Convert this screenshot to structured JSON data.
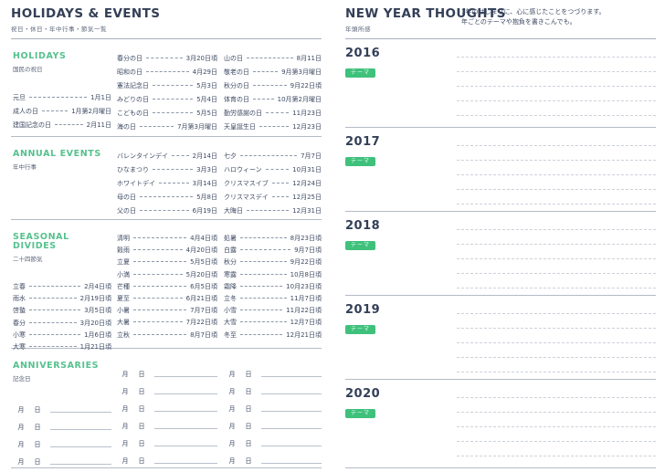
{
  "colors": {
    "navy": "#333f57",
    "section_green": "#56c18e",
    "badge_green": "#3fc17c",
    "rule_gray": "#b4bbc7",
    "dashed_gray": "#cdd2da"
  },
  "left_page": {
    "title": "HOLIDAYS & EVENTS",
    "subtitle": "祝日・休日・年中行事・節気一覧",
    "sections": [
      {
        "title": "HOLIDAYS",
        "subtitle": "国民の祝日",
        "columns": [
          [
            {
              "name": "元旦",
              "date": "1月1日"
            },
            {
              "name": "成人の日",
              "date": "1月第2月曜日"
            },
            {
              "name": "建国記念の日",
              "date": "2月11日"
            }
          ],
          [
            {
              "name": "春分の日",
              "date": "3月20日頃"
            },
            {
              "name": "昭和の日",
              "date": "4月29日"
            },
            {
              "name": "憲法記念日",
              "date": "5月3日"
            },
            {
              "name": "みどりの日",
              "date": "5月4日"
            },
            {
              "name": "こどもの日",
              "date": "5月5日"
            },
            {
              "name": "海の日",
              "date": "7月第3月曜日"
            }
          ],
          [
            {
              "name": "山の日",
              "date": "8月11日"
            },
            {
              "name": "敬老の日",
              "date": "9月第3月曜日"
            },
            {
              "name": "秋分の日",
              "date": "9月22日頃"
            },
            {
              "name": "体育の日",
              "date": "10月第2月曜日"
            },
            {
              "name": "勤労感謝の日",
              "date": "11月23日"
            },
            {
              "name": "天皇誕生日",
              "date": "12月23日"
            }
          ]
        ]
      },
      {
        "title": "ANNUAL EVENTS",
        "subtitle": "年中行事",
        "columns": [
          [],
          [
            {
              "name": "バレンタインデイ",
              "date": "2月14日"
            },
            {
              "name": "ひなまつり",
              "date": "3月3日"
            },
            {
              "name": "ホワイトデイ",
              "date": "3月14日"
            },
            {
              "name": "母の日",
              "date": "5月8日"
            },
            {
              "name": "父の日",
              "date": "6月19日"
            }
          ],
          [
            {
              "name": "七夕",
              "date": "7月7日"
            },
            {
              "name": "ハロウィーン",
              "date": "10月31日"
            },
            {
              "name": "クリスマスイブ",
              "date": "12月24日"
            },
            {
              "name": "クリスマスデイ",
              "date": "12月25日"
            },
            {
              "name": "大晦日",
              "date": "12月31日"
            }
          ]
        ]
      },
      {
        "title": "SEASONAL DIVIDES",
        "subtitle": "二十四節気",
        "columns": [
          [
            {
              "name": "立春",
              "date": "2月4日頃"
            },
            {
              "name": "雨水",
              "date": "2月19日頃"
            },
            {
              "name": "啓蟄",
              "date": "3月5日頃"
            },
            {
              "name": "春分",
              "date": "3月20日頃"
            },
            {
              "name": "小寒",
              "date": "1月6日頃"
            },
            {
              "name": "大寒",
              "date": "1月21日頃"
            }
          ],
          [
            {
              "name": "清明",
              "date": "4月4日頃"
            },
            {
              "name": "穀雨",
              "date": "4月20日頃"
            },
            {
              "name": "立夏",
              "date": "5月5日頃"
            },
            {
              "name": "小満",
              "date": "5月20日頃"
            },
            {
              "name": "芒種",
              "date": "6月5日頃"
            },
            {
              "name": "夏至",
              "date": "6月21日頃"
            },
            {
              "name": "小暑",
              "date": "7月7日頃"
            },
            {
              "name": "大暑",
              "date": "7月22日頃"
            },
            {
              "name": "立秋",
              "date": "8月7日頃"
            }
          ],
          [
            {
              "name": "処暑",
              "date": "8月23日頃"
            },
            {
              "name": "白露",
              "date": "9月7日頃"
            },
            {
              "name": "秋分",
              "date": "9月22日頃"
            },
            {
              "name": "寒露",
              "date": "10月8日頃"
            },
            {
              "name": "霜降",
              "date": "10月23日頃"
            },
            {
              "name": "立冬",
              "date": "11月7日頃"
            },
            {
              "name": "小雪",
              "date": "11月22日頃"
            },
            {
              "name": "大雪",
              "date": "12月7日頃"
            },
            {
              "name": "冬至",
              "date": "12月21日頃"
            }
          ]
        ]
      }
    ],
    "anniversaries": {
      "title": "ANNIVERSARIES",
      "subtitle": "記念日",
      "month_label": "月",
      "day_label": "日",
      "rows_col1": 4,
      "rows_col2": 6,
      "rows_col3": 6
    }
  },
  "right_page": {
    "title": "NEW YEAR THOUGHTS",
    "subtitle": "年頭所感",
    "description": [
      "1年のはじまりに、心に感じたことをつづります。",
      "年ごとのテーマや抱負を書きこんでも。"
    ],
    "badge_label": "テーマ",
    "years": [
      "2016",
      "2017",
      "2018",
      "2019",
      "2020"
    ],
    "lines_per_year": 5
  }
}
